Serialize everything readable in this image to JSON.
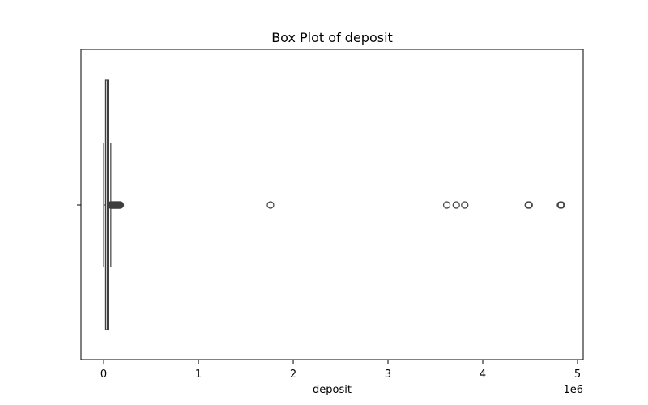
{
  "chart_data": {
    "type": "box",
    "title": "Box Plot of deposit",
    "xlabel": "deposit",
    "ylabel": "",
    "x_offset_label": "1e6",
    "xlim": [
      -0.24,
      5.06
    ],
    "x_scale_factor": 1000000,
    "x_ticks": [
      0,
      1,
      2,
      3,
      4,
      5
    ],
    "x_tick_labels": [
      "0",
      "1",
      "2",
      "3",
      "4",
      "5"
    ],
    "grid": false,
    "legend": "none",
    "box": {
      "min": 0,
      "q1": 20000,
      "median": 40000,
      "q3": 50000,
      "max": 75000
    },
    "outliers": [
      76000,
      80000,
      84000,
      88000,
      92000,
      96000,
      100000,
      104000,
      108000,
      112000,
      116000,
      120000,
      124000,
      128000,
      132000,
      136000,
      140000,
      144000,
      148000,
      152000,
      156000,
      160000,
      165000,
      170000,
      175000,
      1760000,
      3620000,
      3720000,
      3810000,
      4480000,
      4490000,
      4820000,
      4830000
    ],
    "colors": {
      "box_line": "#3f3f3f",
      "outlier_edge": "#3f3f3f",
      "axes": "#000000"
    }
  }
}
